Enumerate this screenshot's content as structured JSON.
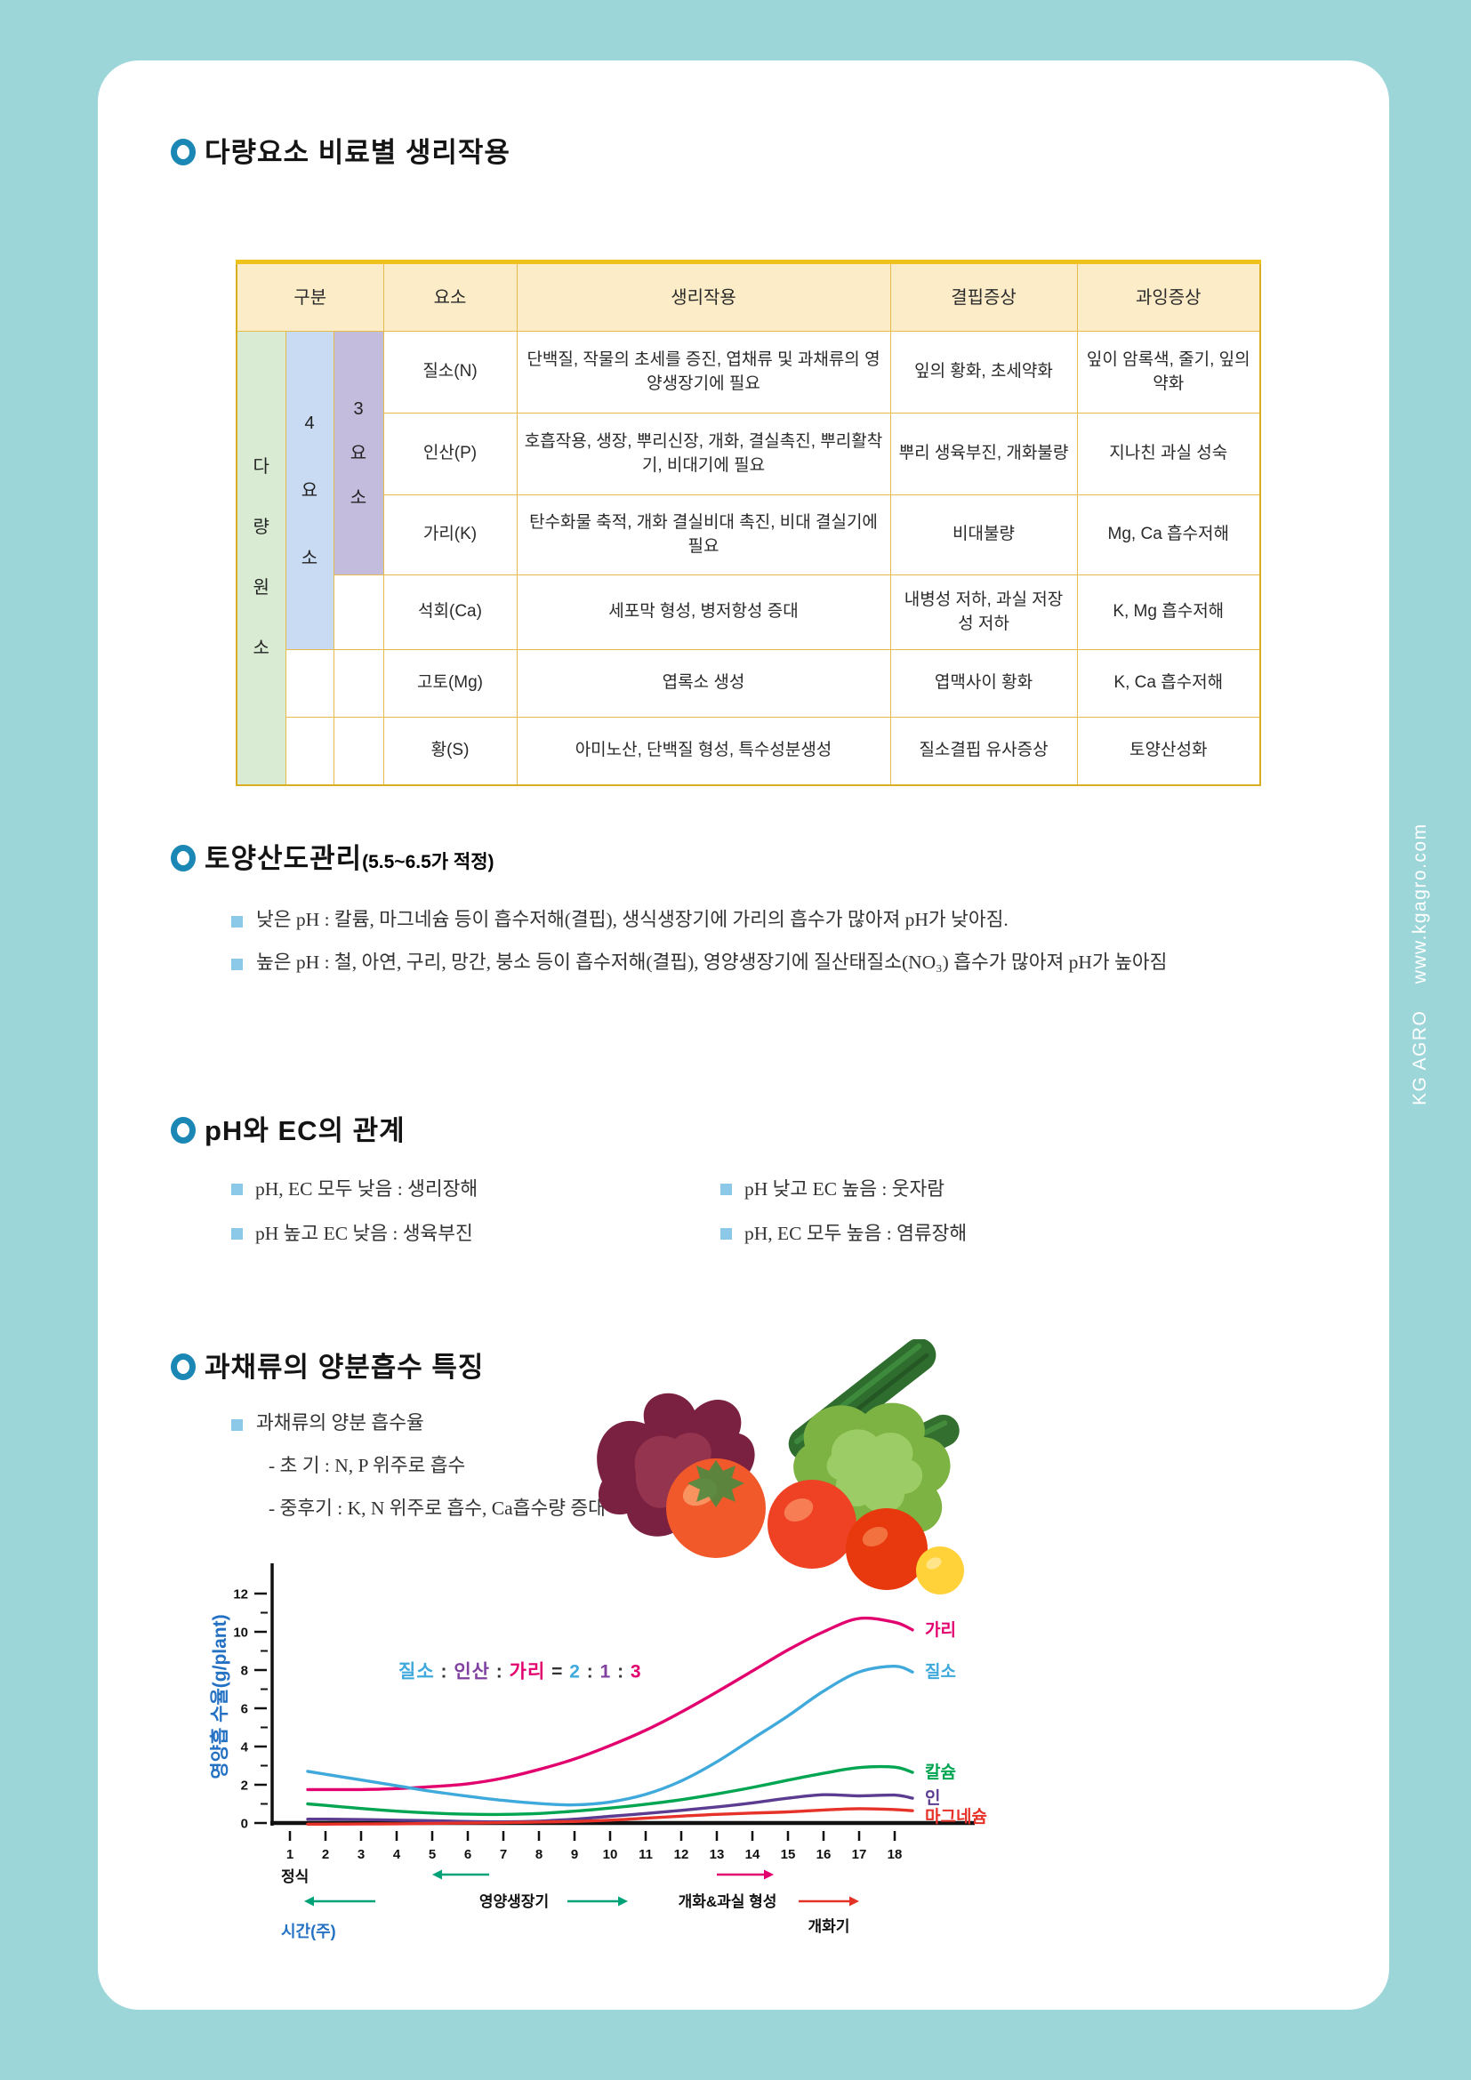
{
  "sidebar": {
    "text": "KG AGRO    www.kgagro.com"
  },
  "sections": {
    "s1": {
      "title": "다량요소 비료별 생리작용"
    },
    "s2": {
      "title": "토양산도관리",
      "subtitle": "(5.5~6.5가 적정)",
      "bullets": [
        "낮은 pH : 칼륨, 마그네슘 등이 흡수저해(결핍), 생식생장기에 가리의 흡수가 많아져 pH가 낮아짐.",
        "높은 pH : 철, 아연, 구리, 망간, 붕소 등이 흡수저해(결핍), 영양생장기에 질산태질소(NO₃) 흡수가 많아져 pH가 높아짐"
      ]
    },
    "s3": {
      "title": "pH와 EC의 관계",
      "bullets": [
        "pH, EC 모두 낮음 : 생리장해",
        "pH 낮고 EC 높음 : 웃자람",
        "pH 높고 EC 낮음 : 생육부진",
        "pH, EC 모두 높음 : 염류장해"
      ]
    },
    "s4": {
      "title": "과채류의 양분흡수 특징",
      "bullet": "과채류의 양분 흡수율",
      "lines": [
        "- 초  기 : N, P 위주로 흡수",
        "- 중후기 : K, N 위주로 흡수, Ca흡수량 증대"
      ]
    }
  },
  "table": {
    "headers": [
      "구분",
      "요소",
      "생리작용",
      "결핍증상",
      "과잉증상"
    ],
    "groups": {
      "macro": "다량원소",
      "four": "4요소",
      "three": "3요소"
    },
    "rows": [
      {
        "element": "질소(N)",
        "physiology": "단백질, 작물의 초세를 증진, 엽채류 및 과채류의 영양생장기에 필요",
        "deficiency": "잎의 황화, 초세약화",
        "excess": "잎이 암록색, 줄기, 잎의 약화"
      },
      {
        "element": "인산(P)",
        "physiology": "호흡작용, 생장, 뿌리신장, 개화, 결실촉진, 뿌리활착기, 비대기에 필요",
        "deficiency": "뿌리 생육부진, 개화불량",
        "excess": "지나친 과실 성숙"
      },
      {
        "element": "가리(K)",
        "physiology": "탄수화물 축적, 개화 결실비대 촉진, 비대 결실기에 필요",
        "deficiency": "비대불량",
        "excess": "Mg, Ca 흡수저해"
      },
      {
        "element": "석회(Ca)",
        "physiology": "세포막 형성, 병저항성 증대",
        "deficiency": "내병성 저하, 과실 저장성 저하",
        "excess": "K, Mg 흡수저해"
      },
      {
        "element": "고토(Mg)",
        "physiology": "엽록소 생성",
        "deficiency": "엽맥사이 황화",
        "excess": "K, Ca 흡수저해"
      },
      {
        "element": "황(S)",
        "physiology": "아미노산, 단백질 형성, 특수성분생성",
        "deficiency": "질소결핍 유사증상",
        "excess": "토양산성화"
      }
    ]
  },
  "chart_data": {
    "type": "line",
    "ylabel": "영양흡 수율(g/plant)",
    "xlabel": "시간(주)",
    "ylim": [
      0,
      12
    ],
    "yticks": [
      0,
      2,
      4,
      6,
      8,
      10,
      12
    ],
    "xticks": [
      1,
      2,
      3,
      4,
      5,
      6,
      7,
      8,
      9,
      10,
      11,
      12,
      13,
      14,
      15,
      16,
      17,
      18
    ],
    "x": [
      1.5,
      2,
      3,
      4,
      5,
      6,
      7,
      8,
      9,
      10,
      11,
      12,
      13,
      14,
      15,
      16,
      17,
      18,
      18.5
    ],
    "series": [
      {
        "name": "가리",
        "color": "#e2006e",
        "values": [
          1.75,
          1.75,
          1.75,
          1.8,
          1.9,
          2.05,
          2.35,
          2.8,
          3.35,
          4.05,
          4.85,
          5.8,
          6.85,
          7.95,
          9.05,
          10.0,
          10.7,
          10.5,
          10.1
        ]
      },
      {
        "name": "질소",
        "color": "#3fa9dc",
        "values": [
          2.7,
          2.55,
          2.25,
          1.95,
          1.65,
          1.4,
          1.18,
          1.02,
          0.95,
          1.1,
          1.5,
          2.2,
          3.2,
          4.4,
          5.6,
          6.9,
          7.9,
          8.2,
          7.9
        ]
      },
      {
        "name": "칼슘",
        "color": "#00a551",
        "values": [
          1.0,
          0.92,
          0.76,
          0.62,
          0.52,
          0.46,
          0.45,
          0.5,
          0.62,
          0.78,
          0.98,
          1.22,
          1.52,
          1.86,
          2.24,
          2.6,
          2.9,
          2.92,
          2.65
        ]
      },
      {
        "name": "인",
        "color": "#5b3c91",
        "values": [
          0.2,
          0.2,
          0.18,
          0.15,
          0.12,
          0.08,
          0.06,
          0.1,
          0.2,
          0.35,
          0.5,
          0.66,
          0.84,
          1.05,
          1.3,
          1.48,
          1.42,
          1.46,
          1.3
        ]
      },
      {
        "name": "마그네슘",
        "color": "#e63229",
        "values": [
          -0.06,
          -0.06,
          -0.05,
          -0.04,
          -0.02,
          0.0,
          0.02,
          0.05,
          0.08,
          0.15,
          0.25,
          0.36,
          0.45,
          0.52,
          0.58,
          0.68,
          0.75,
          0.7,
          0.64
        ]
      }
    ],
    "ratio_annotation": [
      [
        "질소",
        "#3fa9dc"
      ],
      [
        " : ",
        "#333333"
      ],
      [
        "인산",
        "#8040a0"
      ],
      [
        " : ",
        "#333333"
      ],
      [
        "가리",
        "#e2006e"
      ],
      [
        " = ",
        "#333333"
      ],
      [
        "2",
        "#3fa9dc"
      ],
      [
        " : ",
        "#333333"
      ],
      [
        "1",
        "#8040a0"
      ],
      [
        " : ",
        "#333333"
      ],
      [
        "3",
        "#e2006e"
      ]
    ],
    "phases": [
      {
        "label": "정식"
      },
      {
        "label": "영양생장기"
      },
      {
        "label": "개화&과실 형성"
      },
      {
        "label": "개화기"
      }
    ],
    "phase_colors": {
      "teal": "#00a278",
      "pink": "#e2006e",
      "red": "#e53226"
    },
    "legend_position": "right",
    "grid": false
  }
}
